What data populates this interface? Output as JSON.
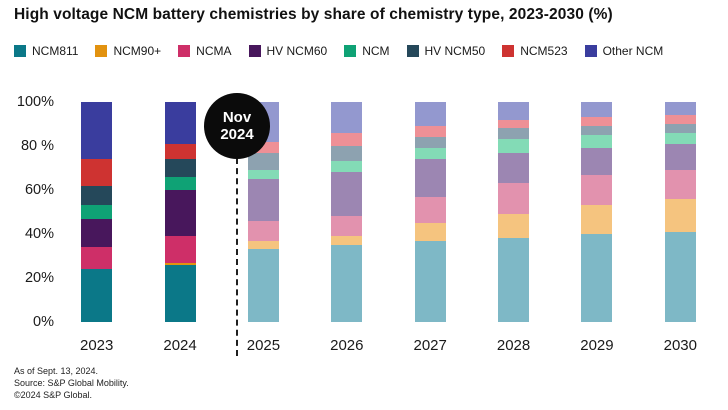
{
  "title": "High voltage NCM battery chemistries by share of chemistry type, 2023-2030 (%)",
  "annotation": {
    "line1": "Nov",
    "line2": "2024"
  },
  "footer": {
    "line1": "As of Sept. 13, 2024.",
    "line2": "Source: S&P Global Mobility.",
    "line3": "©2024 S&P Global."
  },
  "chart_data": {
    "type": "bar",
    "stacked": true,
    "stacking": "percent",
    "title": "High voltage NCM battery chemistries by share of chemistry type, 2023-2030 (%)",
    "categories": [
      "2023",
      "2024",
      "2025",
      "2026",
      "2027",
      "2028",
      "2029",
      "2030"
    ],
    "forecast_start": "2025",
    "forecast_marker": "Nov 2024",
    "ylim": [
      0,
      100
    ],
    "grid": false,
    "legend_position": "top",
    "y_ticks": [
      {
        "value": 100,
        "label": "100%"
      },
      {
        "value": 80,
        "label": "80 %"
      },
      {
        "value": 60,
        "label": "60%"
      },
      {
        "value": 40,
        "label": "40%"
      },
      {
        "value": 20,
        "label": "20%"
      },
      {
        "value": 0,
        "label": "0%"
      }
    ],
    "series": [
      {
        "name": "NCM811",
        "color": "#0B7888",
        "color_forecast": "#7EB8C6",
        "values": [
          24,
          26,
          33,
          35,
          37,
          38,
          40,
          41
        ]
      },
      {
        "name": "NCM90+",
        "color": "#E2920F",
        "color_forecast": "#F5C47F",
        "values": [
          0,
          1,
          4,
          4,
          8,
          11,
          13,
          15
        ]
      },
      {
        "name": "NCMA",
        "color": "#CE2F68",
        "color_forecast": "#E292AE",
        "values": [
          10,
          12,
          9,
          9,
          12,
          14,
          14,
          13
        ]
      },
      {
        "name": "HV NCM60",
        "color": "#48175C",
        "color_forecast": "#9C86B2",
        "values": [
          13,
          21,
          19,
          20,
          17,
          14,
          12,
          12
        ]
      },
      {
        "name": "NCM",
        "color": "#0FA275",
        "color_forecast": "#83DBB6",
        "values": [
          6,
          6,
          4,
          5,
          5,
          6,
          6,
          5
        ]
      },
      {
        "name": "HV NCM50",
        "color": "#25485A",
        "color_forecast": "#8DA2B0",
        "values": [
          9,
          8,
          8,
          7,
          5,
          5,
          4,
          4
        ]
      },
      {
        "name": "NCM523",
        "color": "#CE3331",
        "color_forecast": "#EE9096",
        "values": [
          12,
          7,
          5,
          6,
          5,
          4,
          4,
          4
        ]
      },
      {
        "name": "Other NCM",
        "color": "#3A3D9E",
        "color_forecast": "#9398CF",
        "values": [
          26,
          19,
          18,
          14,
          11,
          8,
          7,
          6
        ]
      }
    ]
  }
}
